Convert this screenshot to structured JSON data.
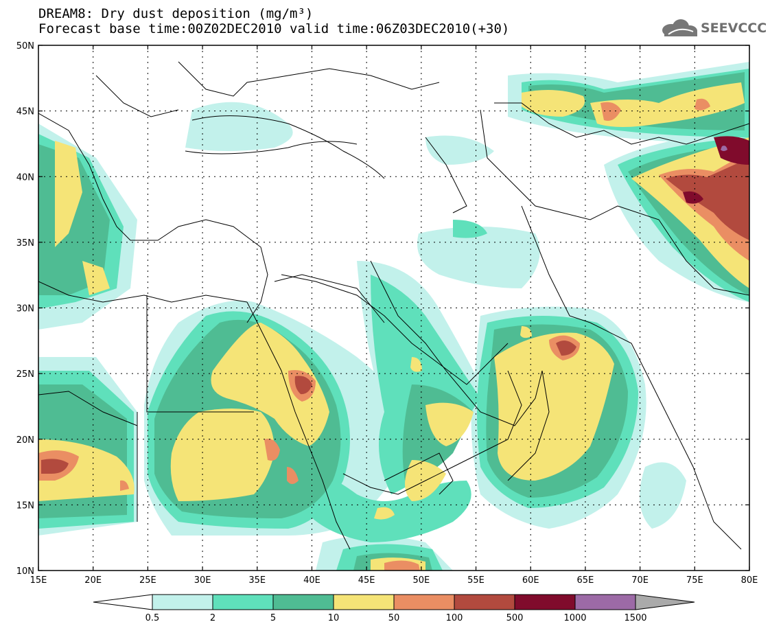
{
  "header": {
    "title": "DREAM8: Dry dust deposition (mg/m³)",
    "subtitle": "Forecast base time:00Z02DEC2010 valid time:06Z03DEC2010(+30)"
  },
  "logo": {
    "text": "SEEVCCC",
    "icon": "cloud-logo-icon"
  },
  "map": {
    "lat_range": [
      10,
      50
    ],
    "lon_range": [
      15,
      80
    ],
    "lat_ticks": [
      "10N",
      "15N",
      "20N",
      "25N",
      "30N",
      "35N",
      "40N",
      "45N",
      "50N"
    ],
    "lon_ticks": [
      "15E",
      "20E",
      "25E",
      "30E",
      "35E",
      "40E",
      "45E",
      "50E",
      "55E",
      "60E",
      "65E",
      "70E",
      "75E",
      "80E"
    ],
    "grid": true
  },
  "colorbar": {
    "labels": [
      "0.5",
      "2",
      "5",
      "10",
      "50",
      "100",
      "500",
      "1000",
      "1500"
    ],
    "colors": [
      "#ffffff",
      "#c2f1eb",
      "#5fe0bb",
      "#4fbc93",
      "#f5e477",
      "#ea8e63",
      "#b24a3e",
      "#800b2c",
      "#9c6aa6",
      "#aaaaaa"
    ]
  }
}
